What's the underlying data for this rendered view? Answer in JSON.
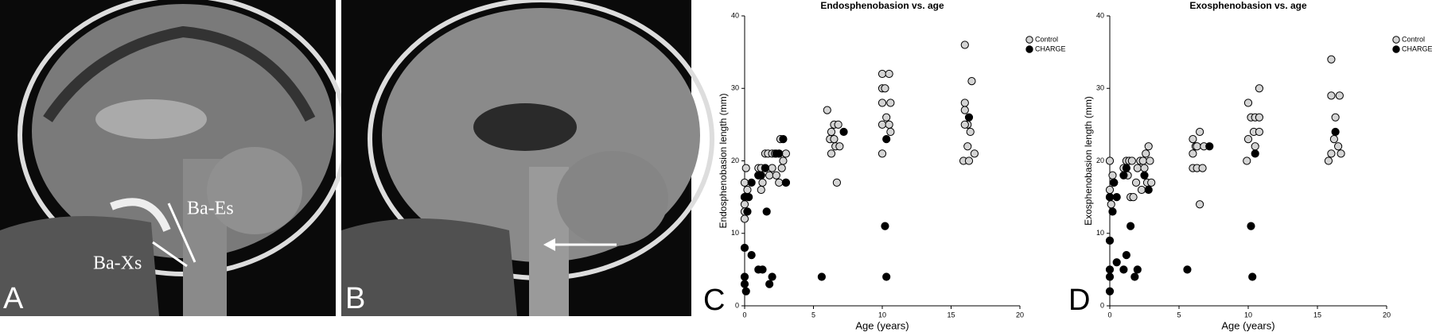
{
  "panels": {
    "a": {
      "letter": "A",
      "labels": [
        "Ba-Es",
        "Ba-Xs"
      ]
    },
    "b": {
      "letter": "B"
    }
  },
  "chart_data": [
    {
      "type": "scatter",
      "panel_label": "C",
      "title": "Endosphenobasion vs. age",
      "x_label": "Age (years)",
      "y_label": "Endosphenobasion length (mm)",
      "xlim": [
        0,
        20
      ],
      "xticks": [
        0,
        5,
        10,
        15,
        20
      ],
      "ylim": [
        0,
        40
      ],
      "yticks": [
        0,
        10,
        20,
        30,
        40
      ],
      "legend": "upper right",
      "series": [
        {
          "name": "Control",
          "color": "#d4d4d4",
          "x": [
            0.1,
            0,
            0,
            0,
            0,
            0,
            0.2,
            1.0,
            1.0,
            1.2,
            1.5,
            1.3,
            1.2,
            1.5,
            1.7,
            2,
            2.2,
            2.5,
            1.8,
            2,
            2.3,
            2.5,
            2.7,
            2.8,
            3,
            2.6,
            3.0,
            6,
            6.2,
            6.3,
            6.5,
            6.8,
            6.5,
            6.3,
            6.6,
            6.9,
            6.7,
            10,
            10.5,
            10,
            10.2,
            10,
            10.6,
            10.3,
            10,
            10.5,
            10.6,
            10,
            16,
            16.5,
            16,
            16,
            16.2,
            16,
            16.4,
            16.2,
            16.7,
            15.9,
            16.3
          ],
          "y": [
            19,
            17,
            15,
            14,
            13,
            12,
            16,
            18,
            19,
            19,
            19,
            17,
            16,
            21,
            21,
            21,
            21,
            21,
            18,
            19,
            18,
            17,
            19,
            20,
            21,
            23,
            17,
            27,
            23,
            24,
            25,
            25,
            23,
            21,
            22,
            22,
            17,
            32,
            32,
            30,
            30,
            28,
            28,
            26,
            25,
            25,
            24,
            21,
            36,
            31,
            28,
            27,
            25,
            25,
            24,
            22,
            21,
            20,
            20
          ]
        },
        {
          "name": "CHARGE",
          "color": "#000000",
          "x": [
            0,
            0.2,
            0.3,
            0.5,
            1,
            1.2,
            1.5,
            2.3,
            2.5,
            2.8,
            3,
            7.2,
            10.3,
            10.2,
            10.3,
            16.3,
            0,
            0.5,
            1,
            1.3,
            1.6,
            1.8,
            2,
            5.6,
            0,
            0,
            0.1
          ],
          "y": [
            15,
            13,
            15,
            17,
            18,
            18,
            19,
            21,
            21,
            23,
            17,
            24,
            23,
            11,
            4,
            26,
            8,
            7,
            5,
            5,
            13,
            3,
            4,
            4,
            4,
            3,
            2
          ]
        }
      ]
    },
    {
      "type": "scatter",
      "panel_label": "D",
      "title": "Exosphenobasion vs. age",
      "x_label": "Age (years)",
      "y_label": "Exosphenobasion length (mm)",
      "xlim": [
        0,
        20
      ],
      "xticks": [
        0,
        5,
        10,
        15,
        20
      ],
      "ylim": [
        0,
        40
      ],
      "yticks": [
        0,
        10,
        20,
        30,
        40
      ],
      "legend": "upper right",
      "series": [
        {
          "name": "Control",
          "color": "#d4d4d4",
          "x": [
            0,
            0.2,
            0,
            0,
            0.3,
            0.1,
            1,
            1.2,
            1.4,
            1.6,
            1.3,
            1.5,
            1.7,
            1.9,
            2,
            2.2,
            2.4,
            2.6,
            2.8,
            2.5,
            2.7,
            3,
            2.9,
            2.3,
            6,
            6.2,
            6.5,
            6.3,
            6,
            6.8,
            6,
            6.3,
            6.7,
            6.5,
            10,
            10.2,
            10.5,
            10.8,
            10.4,
            10.8,
            10.5,
            10,
            9.9,
            10.8,
            16,
            16,
            16.6,
            16.3,
            16.2,
            16.5,
            16,
            16.7,
            15.8
          ],
          "y": [
            20,
            18,
            16,
            15,
            17,
            14,
            19,
            20,
            20,
            20,
            18,
            15,
            15,
            17,
            19,
            20,
            20,
            21,
            22,
            19,
            17,
            17,
            20,
            16,
            23,
            22,
            24,
            22,
            21,
            22,
            19,
            19,
            19,
            14,
            28,
            26,
            26,
            26,
            24,
            24,
            22,
            23,
            20,
            30,
            34,
            29,
            29,
            26,
            23,
            22,
            21,
            21,
            20
          ]
        },
        {
          "name": "CHARGE",
          "color": "#000000",
          "x": [
            0,
            0.2,
            0.5,
            0.3,
            1,
            1.2,
            2.5,
            2.8,
            7.2,
            10.5,
            16.3,
            10.2,
            1.5,
            0,
            0.5,
            1,
            1.2,
            1.8,
            2,
            5.6,
            10.3,
            0,
            0,
            0
          ],
          "y": [
            15,
            13,
            15,
            17,
            18,
            19,
            18,
            16,
            22,
            21,
            24,
            11,
            11,
            9,
            6,
            5,
            7,
            4,
            5,
            5,
            4,
            5,
            4,
            2
          ]
        }
      ]
    }
  ]
}
